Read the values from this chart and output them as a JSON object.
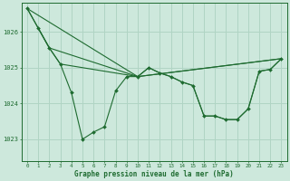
{
  "title": "Graphe pression niveau de la mer (hPa)",
  "bg_color": "#cde8dc",
  "grid_color": "#b0d4c4",
  "line_color": "#1e6b30",
  "xlim": [
    -0.5,
    23.5
  ],
  "ylim": [
    1022.4,
    1026.8
  ],
  "yticks": [
    1023,
    1024,
    1025,
    1026
  ],
  "xticks": [
    0,
    1,
    2,
    3,
    4,
    5,
    6,
    7,
    8,
    9,
    10,
    11,
    12,
    13,
    14,
    15,
    16,
    17,
    18,
    19,
    20,
    21,
    22,
    23
  ],
  "series": [
    {
      "x": [
        0,
        1,
        2,
        3,
        4,
        5,
        6,
        7,
        8,
        9,
        10,
        11,
        12,
        13,
        14,
        15,
        16,
        17,
        18,
        19,
        20,
        21,
        22,
        23
      ],
      "y": [
        1026.65,
        1026.1,
        1025.55,
        1025.1,
        1024.3,
        1023.0,
        1023.2,
        1023.35,
        1024.35,
        1024.75,
        1024.75,
        1025.0,
        1024.85,
        1024.75,
        1024.6,
        1024.5,
        1023.65,
        1023.65,
        1023.55,
        1023.55,
        1023.85,
        1024.9,
        1024.95,
        1025.25
      ],
      "markers": true
    },
    {
      "x": [
        0,
        10,
        23
      ],
      "y": [
        1026.65,
        1024.75,
        1025.25
      ],
      "markers": false
    },
    {
      "x": [
        0,
        2,
        10,
        23
      ],
      "y": [
        1026.65,
        1025.55,
        1024.75,
        1025.25
      ],
      "markers": false
    },
    {
      "x": [
        1,
        2,
        3,
        10,
        11,
        12,
        13,
        14,
        15,
        16,
        17,
        18,
        19,
        20,
        21,
        22,
        23
      ],
      "y": [
        1026.1,
        1025.55,
        1025.1,
        1024.75,
        1025.0,
        1024.85,
        1024.75,
        1024.6,
        1024.5,
        1023.65,
        1023.65,
        1023.55,
        1023.55,
        1023.85,
        1024.9,
        1024.95,
        1025.25
      ],
      "markers": false
    }
  ]
}
